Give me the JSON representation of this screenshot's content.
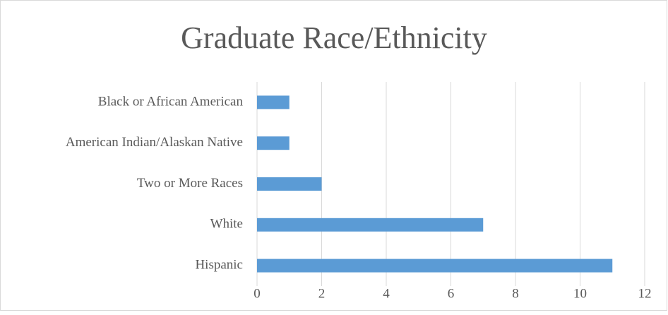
{
  "chart_data": {
    "type": "bar",
    "orientation": "horizontal",
    "title": "Graduate Race/Ethnicity",
    "categories": [
      "Black or African American",
      "American Indian/Alaskan Native",
      "Two or More Races",
      "White",
      "Hispanic"
    ],
    "values": [
      1,
      1,
      2,
      7,
      11
    ],
    "color": "#5b9bd5",
    "xlim": [
      0,
      12
    ],
    "xticks": [
      0,
      2,
      4,
      6,
      8,
      10,
      12
    ],
    "grid": true
  }
}
